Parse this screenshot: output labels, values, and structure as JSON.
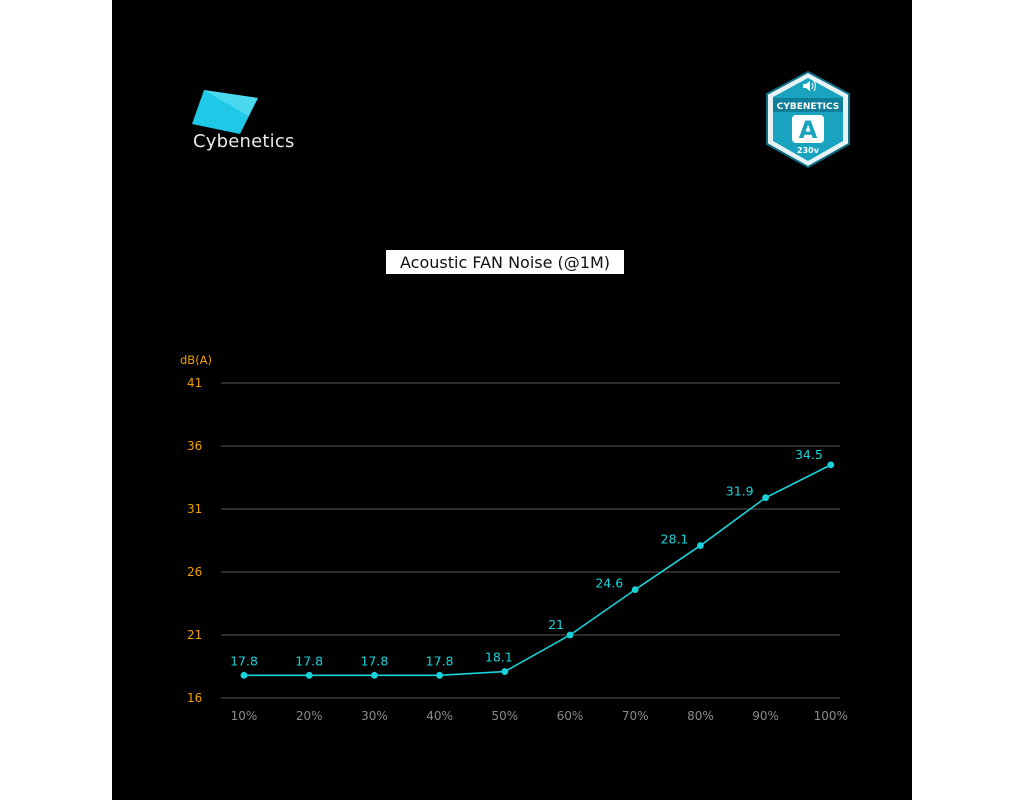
{
  "brand": {
    "name": "Cybenetics",
    "logo_color": "#1ec8e6"
  },
  "badge": {
    "brand": "CYBENETICS",
    "grade": "A",
    "voltage": "230v",
    "icon": "speaker-icon",
    "color": "#1aa3bf"
  },
  "chart_data": {
    "type": "line",
    "title": "Acoustic FAN Noise (@1M)",
    "ylabel": "dB(A)",
    "xlabel": "",
    "categories": [
      "10%",
      "20%",
      "30%",
      "40%",
      "50%",
      "60%",
      "70%",
      "80%",
      "90%",
      "100%"
    ],
    "values": [
      17.8,
      17.8,
      17.8,
      17.8,
      18.1,
      21,
      24.6,
      28.1,
      31.9,
      34.5
    ],
    "value_labels": [
      "17.8",
      "17.8",
      "17.8",
      "17.8",
      "18.1",
      "21",
      "24.6",
      "28.1",
      "31.9",
      "34.5"
    ],
    "ylim": [
      16,
      41
    ],
    "yticks": [
      "16",
      "21",
      "26",
      "31",
      "36",
      "41"
    ],
    "grid": true,
    "line_color": "#19d3da",
    "tick_color": "#f0a000"
  }
}
